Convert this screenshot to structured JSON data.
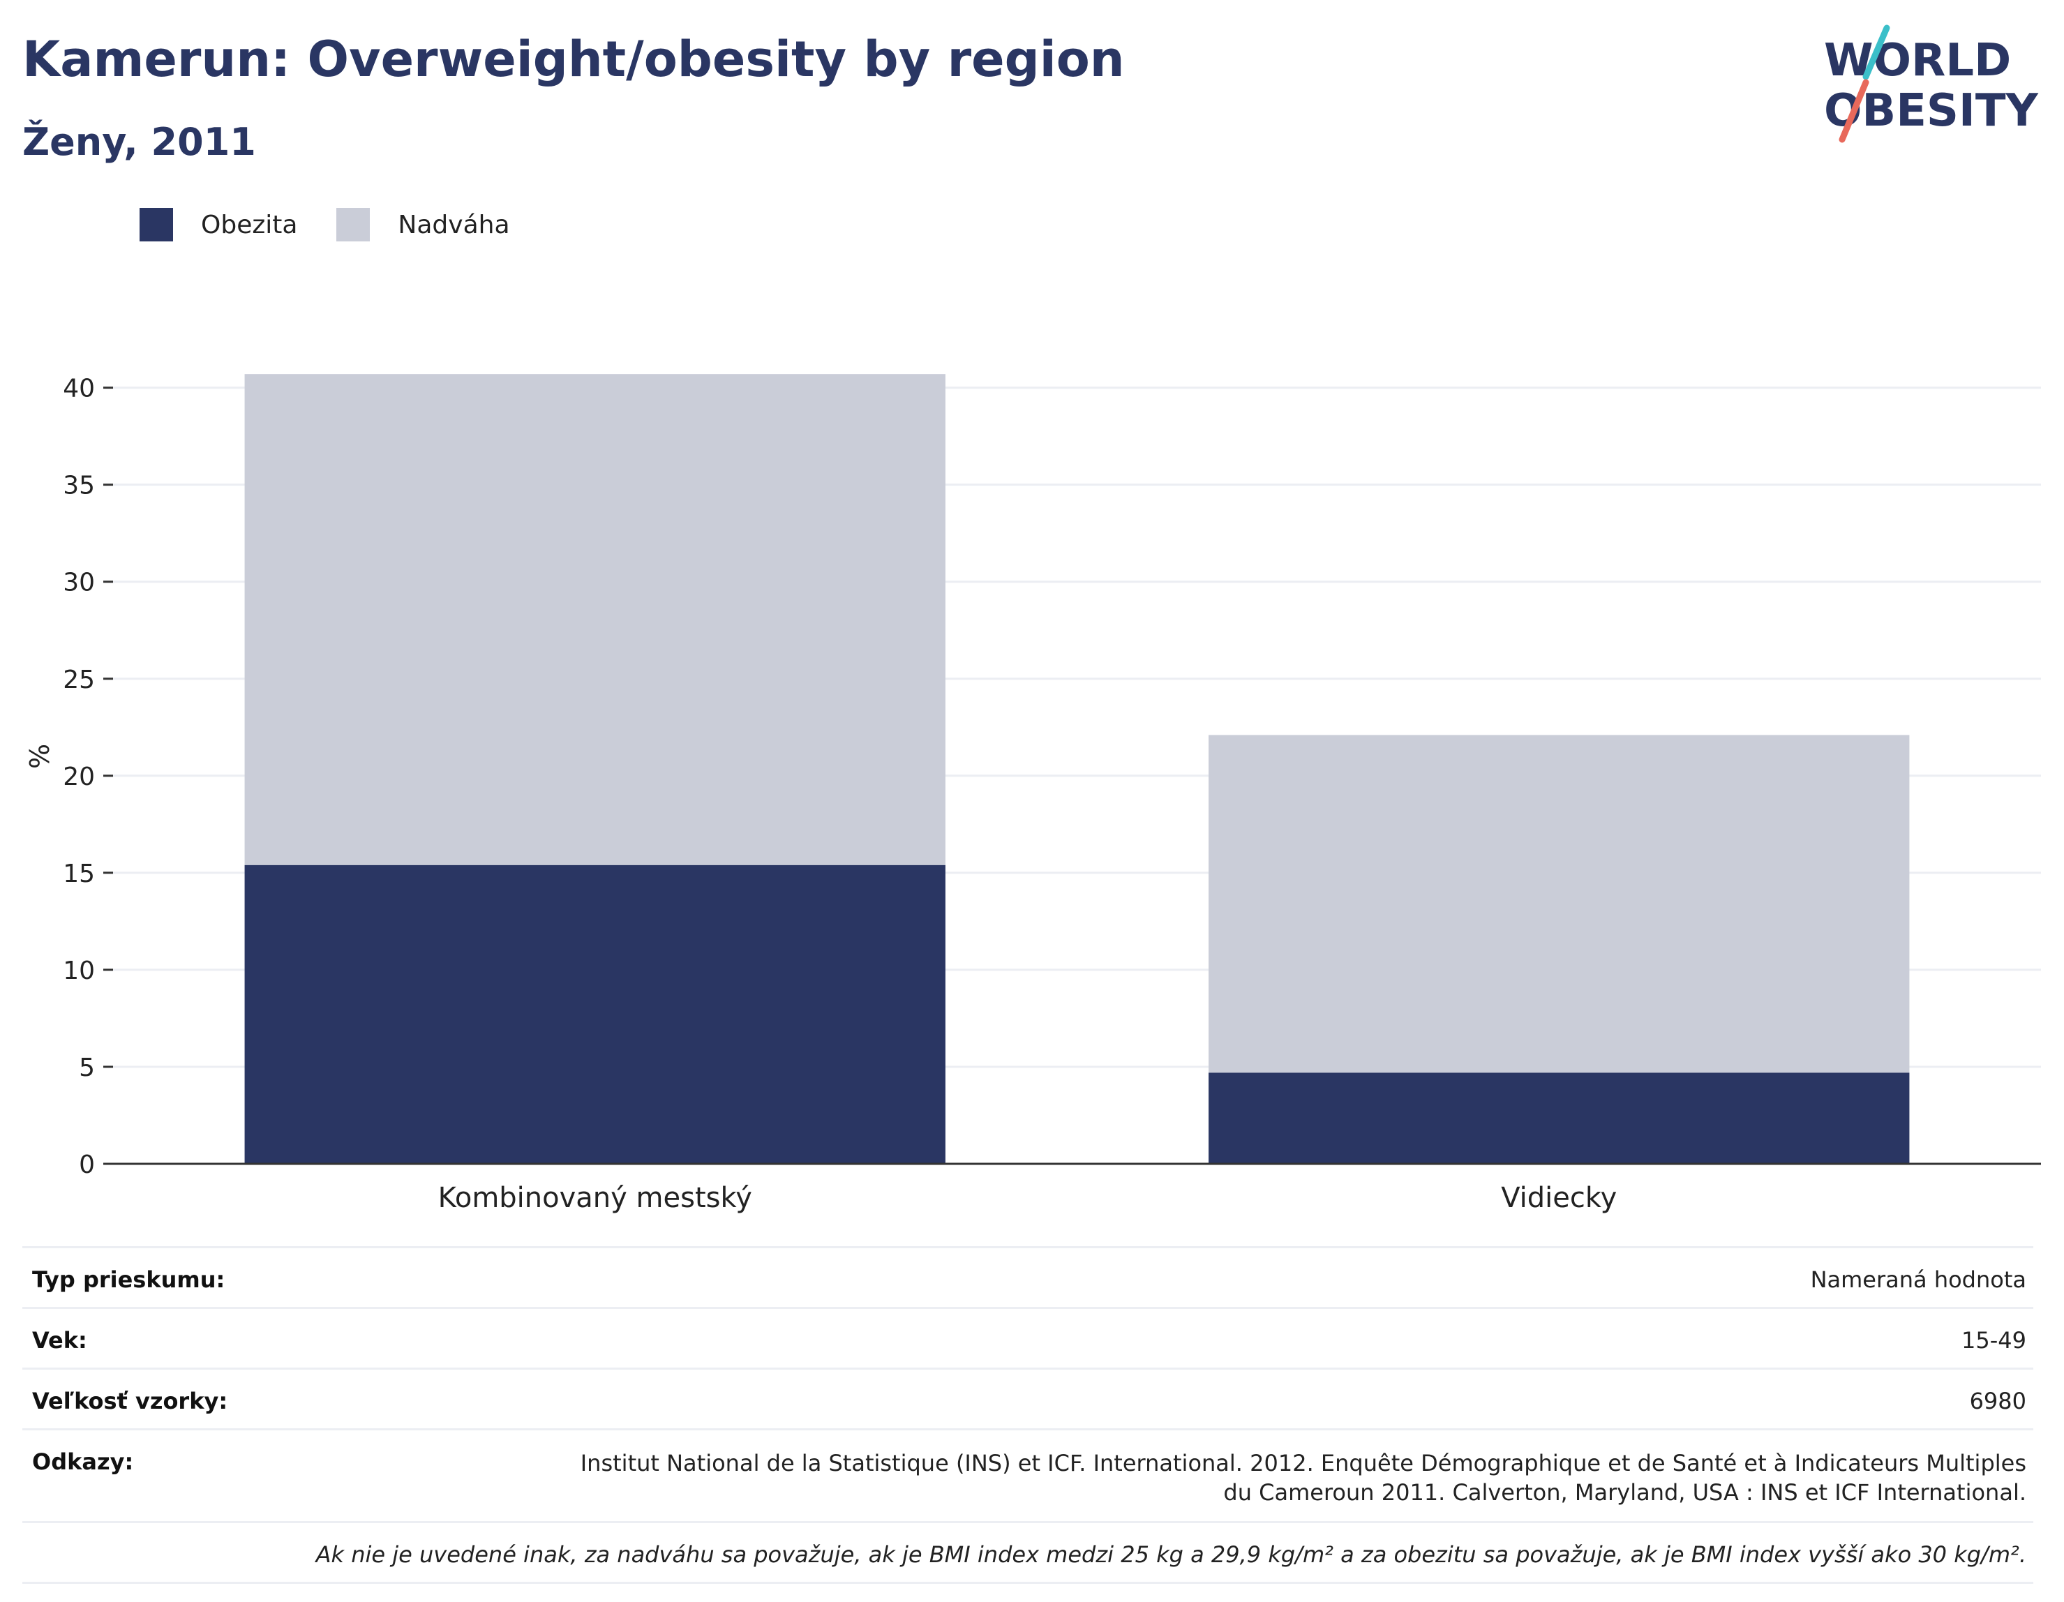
{
  "header": {
    "title": "Kamerun: Overweight/obesity by region",
    "subtitle": "Ženy, 2011"
  },
  "logo": {
    "line1": "WORLD",
    "line2": "OBESITY",
    "accent_colors": [
      "#3bbfc9",
      "#e8695b"
    ]
  },
  "legend": {
    "items": [
      {
        "label": "Obezita",
        "color": "#2a3663"
      },
      {
        "label": "Nadváha",
        "color": "#cacdd8"
      }
    ]
  },
  "chart_data": {
    "type": "bar",
    "stacked": true,
    "categories": [
      "Kombinovaný mestský",
      "Vidiecky"
    ],
    "series": [
      {
        "name": "Obezita",
        "color": "#2a3663",
        "values": [
          15.4,
          4.7
        ]
      },
      {
        "name": "Nadváha",
        "color": "#cacdd8",
        "values": [
          25.3,
          17.4
        ]
      }
    ],
    "ylabel": "%",
    "ylim": [
      0,
      42
    ],
    "yticks": [
      "0",
      "5",
      "10",
      "15",
      "20",
      "25",
      "30",
      "35",
      "40"
    ],
    "grid": true,
    "legend_position": "top-left"
  },
  "info": {
    "survey_type_label": "Typ prieskumu:",
    "survey_type_value": "Nameraná hodnota",
    "age_label": "Vek:",
    "age_value": "15-49",
    "sample_label": "Veľkosť vzorky:",
    "sample_value": "6980",
    "refs_label": "Odkazy:",
    "refs_value": "Institut National de la Statistique (INS) et ICF. International. 2012. Enquête Démographique et de Santé et à Indicateurs Multiples du Cameroun 2011. Calverton, Maryland, USA : INS et ICF International.",
    "note": "Ak nie je uvedené inak, za nadváhu sa považuje, ak je BMI index medzi 25 kg a 29,9 kg/m² a za obezitu sa považuje, ak je BMI index vyšší ako 30 kg/m²."
  }
}
